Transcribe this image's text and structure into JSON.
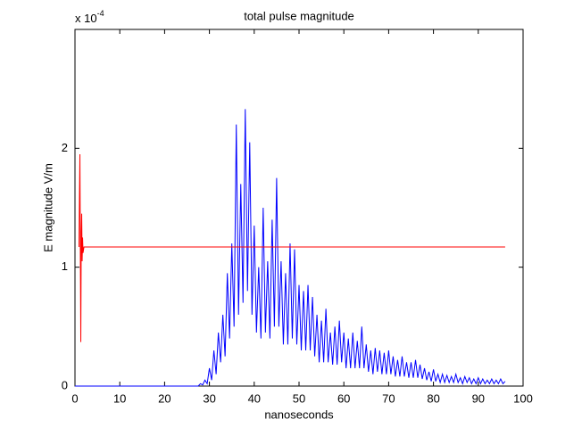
{
  "chart_data": {
    "type": "line",
    "title": "total pulse magnitude",
    "xlabel": "nanoseconds",
    "ylabel": "E magnitude V/m",
    "y_multiplier": {
      "base": "x 10",
      "exponent": "-4"
    },
    "xlim": [
      0,
      100
    ],
    "xticks": [
      0,
      10,
      20,
      30,
      40,
      50,
      60,
      70,
      80,
      90,
      100
    ],
    "ylim": [
      0,
      3
    ],
    "yticks": [
      0,
      1,
      2
    ],
    "grid": false,
    "series": [
      {
        "color": "#0000ff",
        "x": [
          0,
          27,
          27.5,
          28,
          28.5,
          29,
          29.5,
          30,
          30.5,
          31,
          31.5,
          32,
          32.5,
          33,
          33.5,
          34,
          34.5,
          35,
          35.5,
          36,
          36.5,
          37,
          37.5,
          38,
          38.5,
          39,
          39.5,
          40,
          40.5,
          41,
          41.5,
          42,
          42.5,
          43,
          43.5,
          44,
          44.5,
          45,
          45.5,
          46,
          46.5,
          47,
          47.5,
          48,
          48.5,
          49,
          49.5,
          50,
          50.5,
          51,
          51.5,
          52,
          52.5,
          53,
          53.5,
          54,
          54.5,
          55,
          55.5,
          56,
          56.5,
          57,
          57.5,
          58,
          58.5,
          59,
          59.5,
          60,
          60.5,
          61,
          61.5,
          62,
          62.5,
          63,
          63.5,
          64,
          64.5,
          65,
          65.5,
          66,
          66.5,
          67,
          67.5,
          68,
          68.5,
          69,
          69.5,
          70,
          70.5,
          71,
          71.5,
          72,
          72.5,
          73,
          73.5,
          74,
          74.5,
          75,
          75.5,
          76,
          76.5,
          77,
          77.5,
          78,
          78.5,
          79,
          79.5,
          80,
          80.5,
          81,
          81.5,
          82,
          82.5,
          83,
          83.5,
          84,
          84.5,
          85,
          85.5,
          86,
          86.5,
          87,
          87.5,
          88,
          88.5,
          89,
          89.5,
          90,
          90.5,
          91,
          91.5,
          92,
          92.5,
          93,
          93.5,
          94,
          94.5,
          95,
          95.5,
          96
        ],
        "values": [
          0,
          0,
          0,
          0.02,
          0.01,
          0.05,
          0.02,
          0.15,
          0.05,
          0.3,
          0.1,
          0.45,
          0.2,
          0.6,
          0.25,
          0.95,
          0.4,
          1.2,
          0.5,
          2.2,
          0.6,
          1.7,
          0.7,
          2.33,
          0.8,
          2.05,
          0.6,
          1.35,
          0.45,
          1.0,
          0.4,
          1.5,
          0.45,
          1.05,
          0.4,
          1.4,
          0.5,
          1.75,
          0.5,
          1.05,
          0.35,
          0.95,
          0.35,
          1.2,
          0.4,
          1.15,
          0.35,
          0.85,
          0.3,
          0.8,
          0.3,
          0.85,
          0.3,
          0.75,
          0.25,
          0.6,
          0.2,
          0.55,
          0.2,
          0.65,
          0.2,
          0.45,
          0.18,
          0.5,
          0.18,
          0.55,
          0.2,
          0.45,
          0.15,
          0.4,
          0.15,
          0.45,
          0.15,
          0.38,
          0.15,
          0.5,
          0.15,
          0.35,
          0.12,
          0.3,
          0.1,
          0.32,
          0.12,
          0.3,
          0.1,
          0.28,
          0.1,
          0.3,
          0.1,
          0.25,
          0.08,
          0.22,
          0.08,
          0.25,
          0.08,
          0.2,
          0.07,
          0.2,
          0.07,
          0.22,
          0.07,
          0.18,
          0.06,
          0.15,
          0.05,
          0.12,
          0.04,
          0.14,
          0.04,
          0.1,
          0.03,
          0.1,
          0.03,
          0.09,
          0.03,
          0.08,
          0.03,
          0.1,
          0.03,
          0.07,
          0.02,
          0.08,
          0.03,
          0.07,
          0.02,
          0.06,
          0.02,
          0.07,
          0.02,
          0.06,
          0.02,
          0.05,
          0.02,
          0.06,
          0.02,
          0.05,
          0.02,
          0.06,
          0.02,
          0.04
        ]
      },
      {
        "color": "#ff0000",
        "x": [
          0.9,
          1.0,
          1.1,
          1.2,
          1.3,
          1.4,
          1.5,
          1.6,
          1.7,
          1.8,
          2.0,
          96
        ],
        "values": [
          1.17,
          1.6,
          1.95,
          1.1,
          0.37,
          1.3,
          1.45,
          1.05,
          1.25,
          1.12,
          1.17,
          1.17
        ]
      }
    ]
  }
}
